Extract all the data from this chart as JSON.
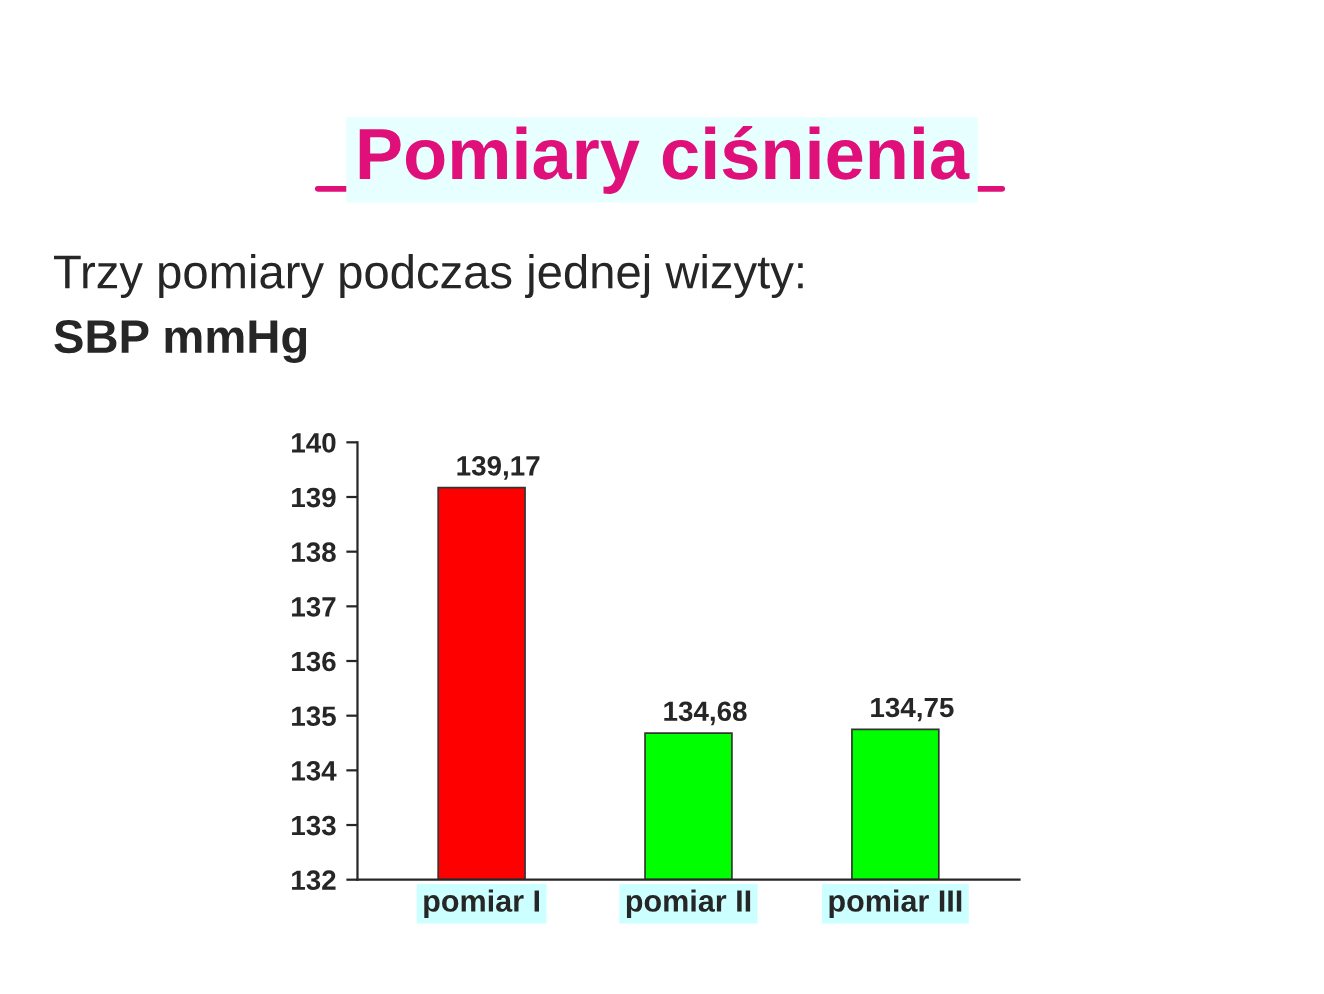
{
  "chart_data": {
    "type": "bar",
    "title": "Pomiary ciśnienia",
    "subtitle": "Trzy pomiary podczas jednej wizyty:",
    "ylabel": "SBP mmHg",
    "categories": [
      "pomiar I",
      "pomiar II",
      "pomiar III"
    ],
    "values": [
      139.17,
      134.68,
      134.75
    ],
    "colors": [
      "#ff0000",
      "#00ff00",
      "#00ff00"
    ],
    "value_labels": [
      "139,17",
      "134,68",
      "134,75"
    ],
    "ylim": [
      132,
      140
    ],
    "yticks": [
      132,
      133,
      134,
      135,
      136,
      137,
      138,
      139,
      140
    ],
    "grid": false,
    "legend": false
  }
}
